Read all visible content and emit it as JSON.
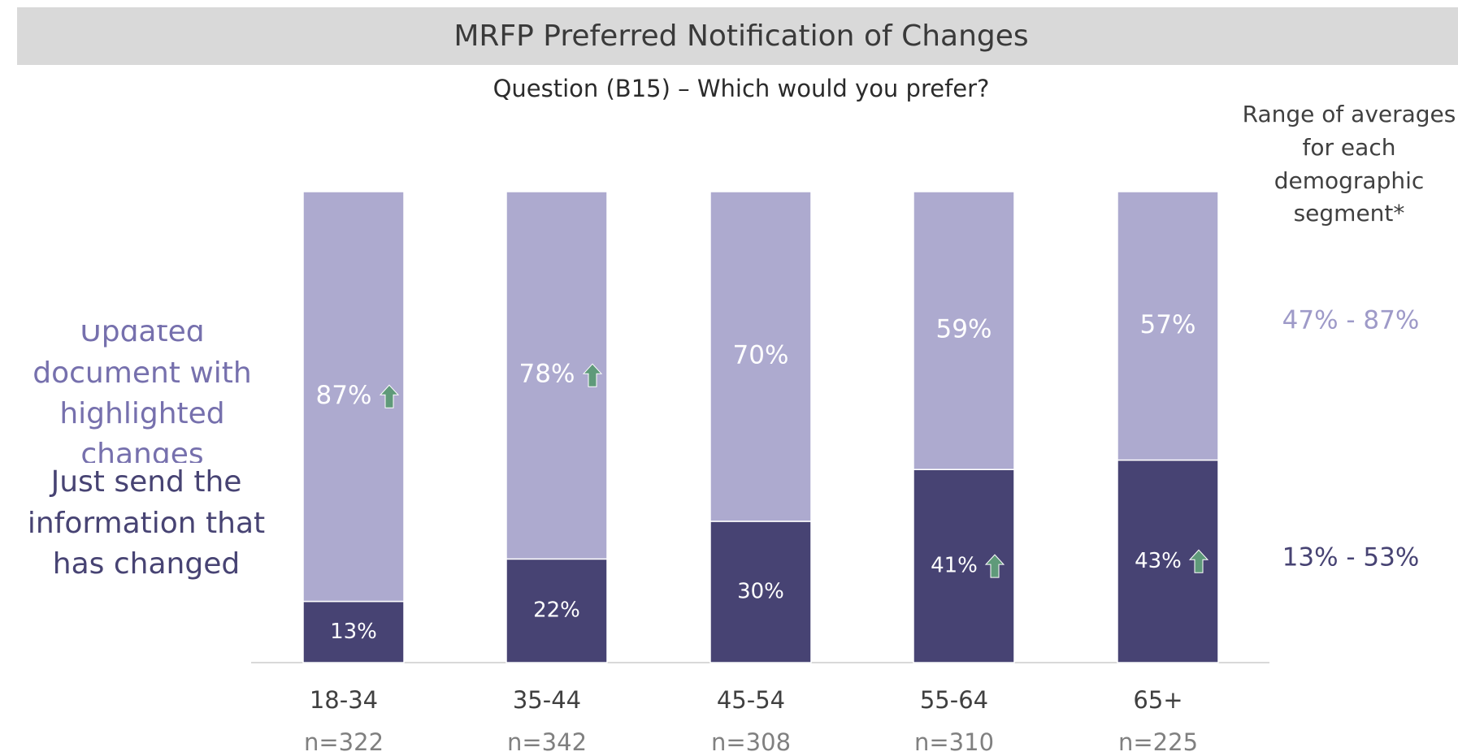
{
  "chart_data": {
    "type": "stacked_bar",
    "title": "MRFP Preferred Notification of Changes",
    "subtitle": "Question (B15)  – Which would you prefer?",
    "categories": [
      "18-34",
      "35-44",
      "45-54",
      "55-64",
      "65+"
    ],
    "sample_sizes": [
      "n=322",
      "n=342",
      "n=308",
      "n=310",
      "n=225"
    ],
    "ylim": [
      0,
      100
    ],
    "series": [
      {
        "name": "Just send the information that has changed",
        "color": "#474373",
        "values": [
          13,
          22,
          30,
          41,
          43
        ],
        "value_labels": [
          "13%",
          "22%",
          "30%",
          "41%",
          "43%"
        ],
        "up_arrow": [
          false,
          false,
          false,
          true,
          true
        ],
        "range": "13% - 53%"
      },
      {
        "name": "Updated document with highlighted changes",
        "color": "#adaacf",
        "values": [
          87,
          78,
          70,
          59,
          57
        ],
        "value_labels": [
          "87%",
          "78%",
          "70%",
          "59%",
          "57%"
        ],
        "up_arrow": [
          true,
          true,
          false,
          false,
          false
        ],
        "range": "47% - 87%"
      }
    ],
    "range_heading": "Range of averages for each demographic segment*",
    "arrow_color": "#5f9a7a"
  }
}
